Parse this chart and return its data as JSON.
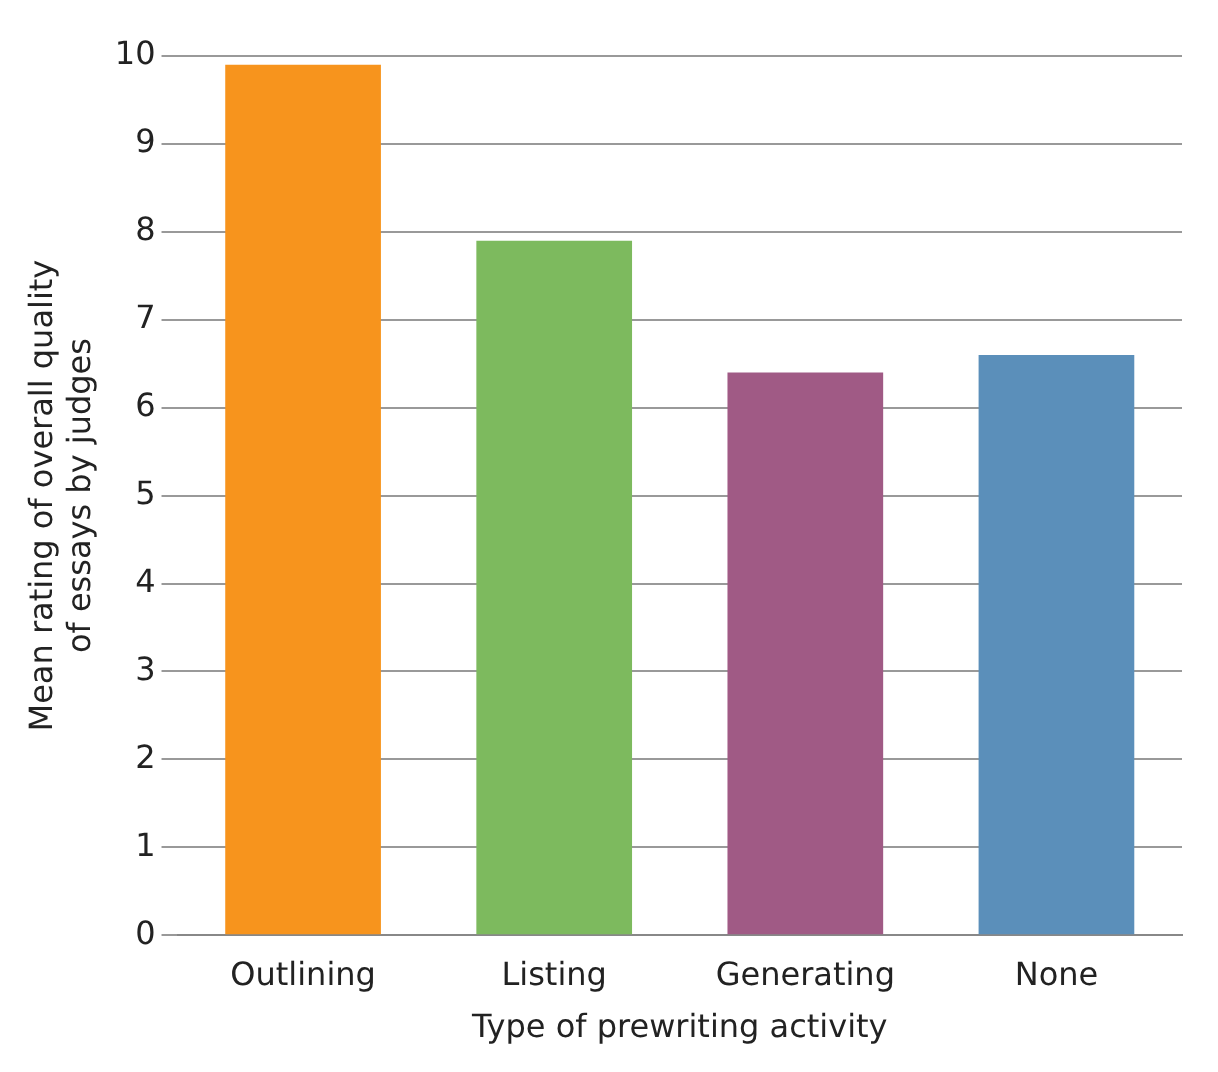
{
  "chart_data": {
    "type": "bar",
    "xlabel": "Type of prewriting activity",
    "ylabel": "Mean rating of overall quality\nof essays by judges",
    "categories": [
      "Outlining",
      "Listing",
      "Generating",
      "None"
    ],
    "values": [
      9.9,
      7.9,
      6.4,
      6.6
    ],
    "colors": [
      "#f7941d",
      "#7dba5e",
      "#a05a85",
      "#5b8fba"
    ],
    "ylim": [
      0,
      10
    ],
    "yticks": [
      0,
      1,
      2,
      3,
      4,
      5,
      6,
      7,
      8,
      9,
      10
    ],
    "grid": "y",
    "legend": false
  }
}
